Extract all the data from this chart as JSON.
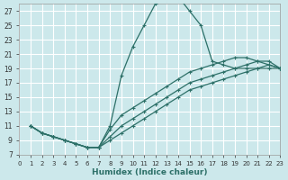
{
  "xlabel": "Humidex (Indice chaleur)",
  "bg_color": "#cce8eb",
  "line_color": "#2d7068",
  "grid_color": "#ffffff",
  "xlim": [
    0,
    23
  ],
  "ylim": [
    7,
    28
  ],
  "xticks": [
    0,
    1,
    2,
    3,
    4,
    5,
    6,
    7,
    8,
    9,
    10,
    11,
    12,
    13,
    14,
    15,
    16,
    17,
    18,
    19,
    20,
    21,
    22,
    23
  ],
  "yticks": [
    7,
    9,
    11,
    13,
    15,
    17,
    19,
    21,
    23,
    25,
    27
  ],
  "main_x": [
    1,
    2,
    3,
    4,
    5,
    6,
    7,
    8,
    9,
    10,
    11,
    12,
    13,
    14,
    15,
    16,
    17,
    18,
    19,
    20,
    21,
    22,
    23
  ],
  "main_y": [
    11,
    10,
    9.5,
    9,
    8.5,
    8,
    8,
    11,
    18,
    22,
    25,
    28,
    29,
    29,
    27,
    25,
    20,
    19.5,
    19,
    19,
    19,
    19,
    19
  ],
  "line2_x": [
    1,
    2,
    3,
    4,
    5,
    6,
    7,
    8,
    9,
    10,
    11,
    12,
    13,
    14,
    15,
    16,
    17,
    18,
    19,
    20,
    21,
    22,
    23
  ],
  "line2_y": [
    11,
    10,
    9.5,
    9,
    8.5,
    8,
    8,
    9,
    10,
    11,
    12,
    13,
    14,
    15,
    16,
    16.5,
    17,
    17.5,
    18,
    18.5,
    19,
    19.5,
    19
  ],
  "line3_x": [
    1,
    2,
    3,
    4,
    5,
    6,
    7,
    8,
    9,
    10,
    11,
    12,
    13,
    14,
    15,
    16,
    17,
    18,
    19,
    20,
    21,
    22,
    23
  ],
  "line3_y": [
    11,
    10,
    9.5,
    9,
    8.5,
    8,
    8,
    9.5,
    11,
    12,
    13,
    14,
    15,
    16,
    17,
    17.5,
    18,
    18.5,
    19,
    19.5,
    20,
    20,
    19
  ],
  "line4_x": [
    1,
    2,
    3,
    4,
    5,
    6,
    7,
    8,
    9,
    10,
    11,
    12,
    13,
    14,
    15,
    16,
    17,
    18,
    19,
    20,
    21,
    22,
    23
  ],
  "line4_y": [
    11,
    10,
    9.5,
    9,
    8.5,
    8,
    8,
    10.5,
    12.5,
    13.5,
    14.5,
    15.5,
    16.5,
    17.5,
    18.5,
    19,
    19.5,
    20,
    20.5,
    20.5,
    20,
    19.5,
    19
  ]
}
